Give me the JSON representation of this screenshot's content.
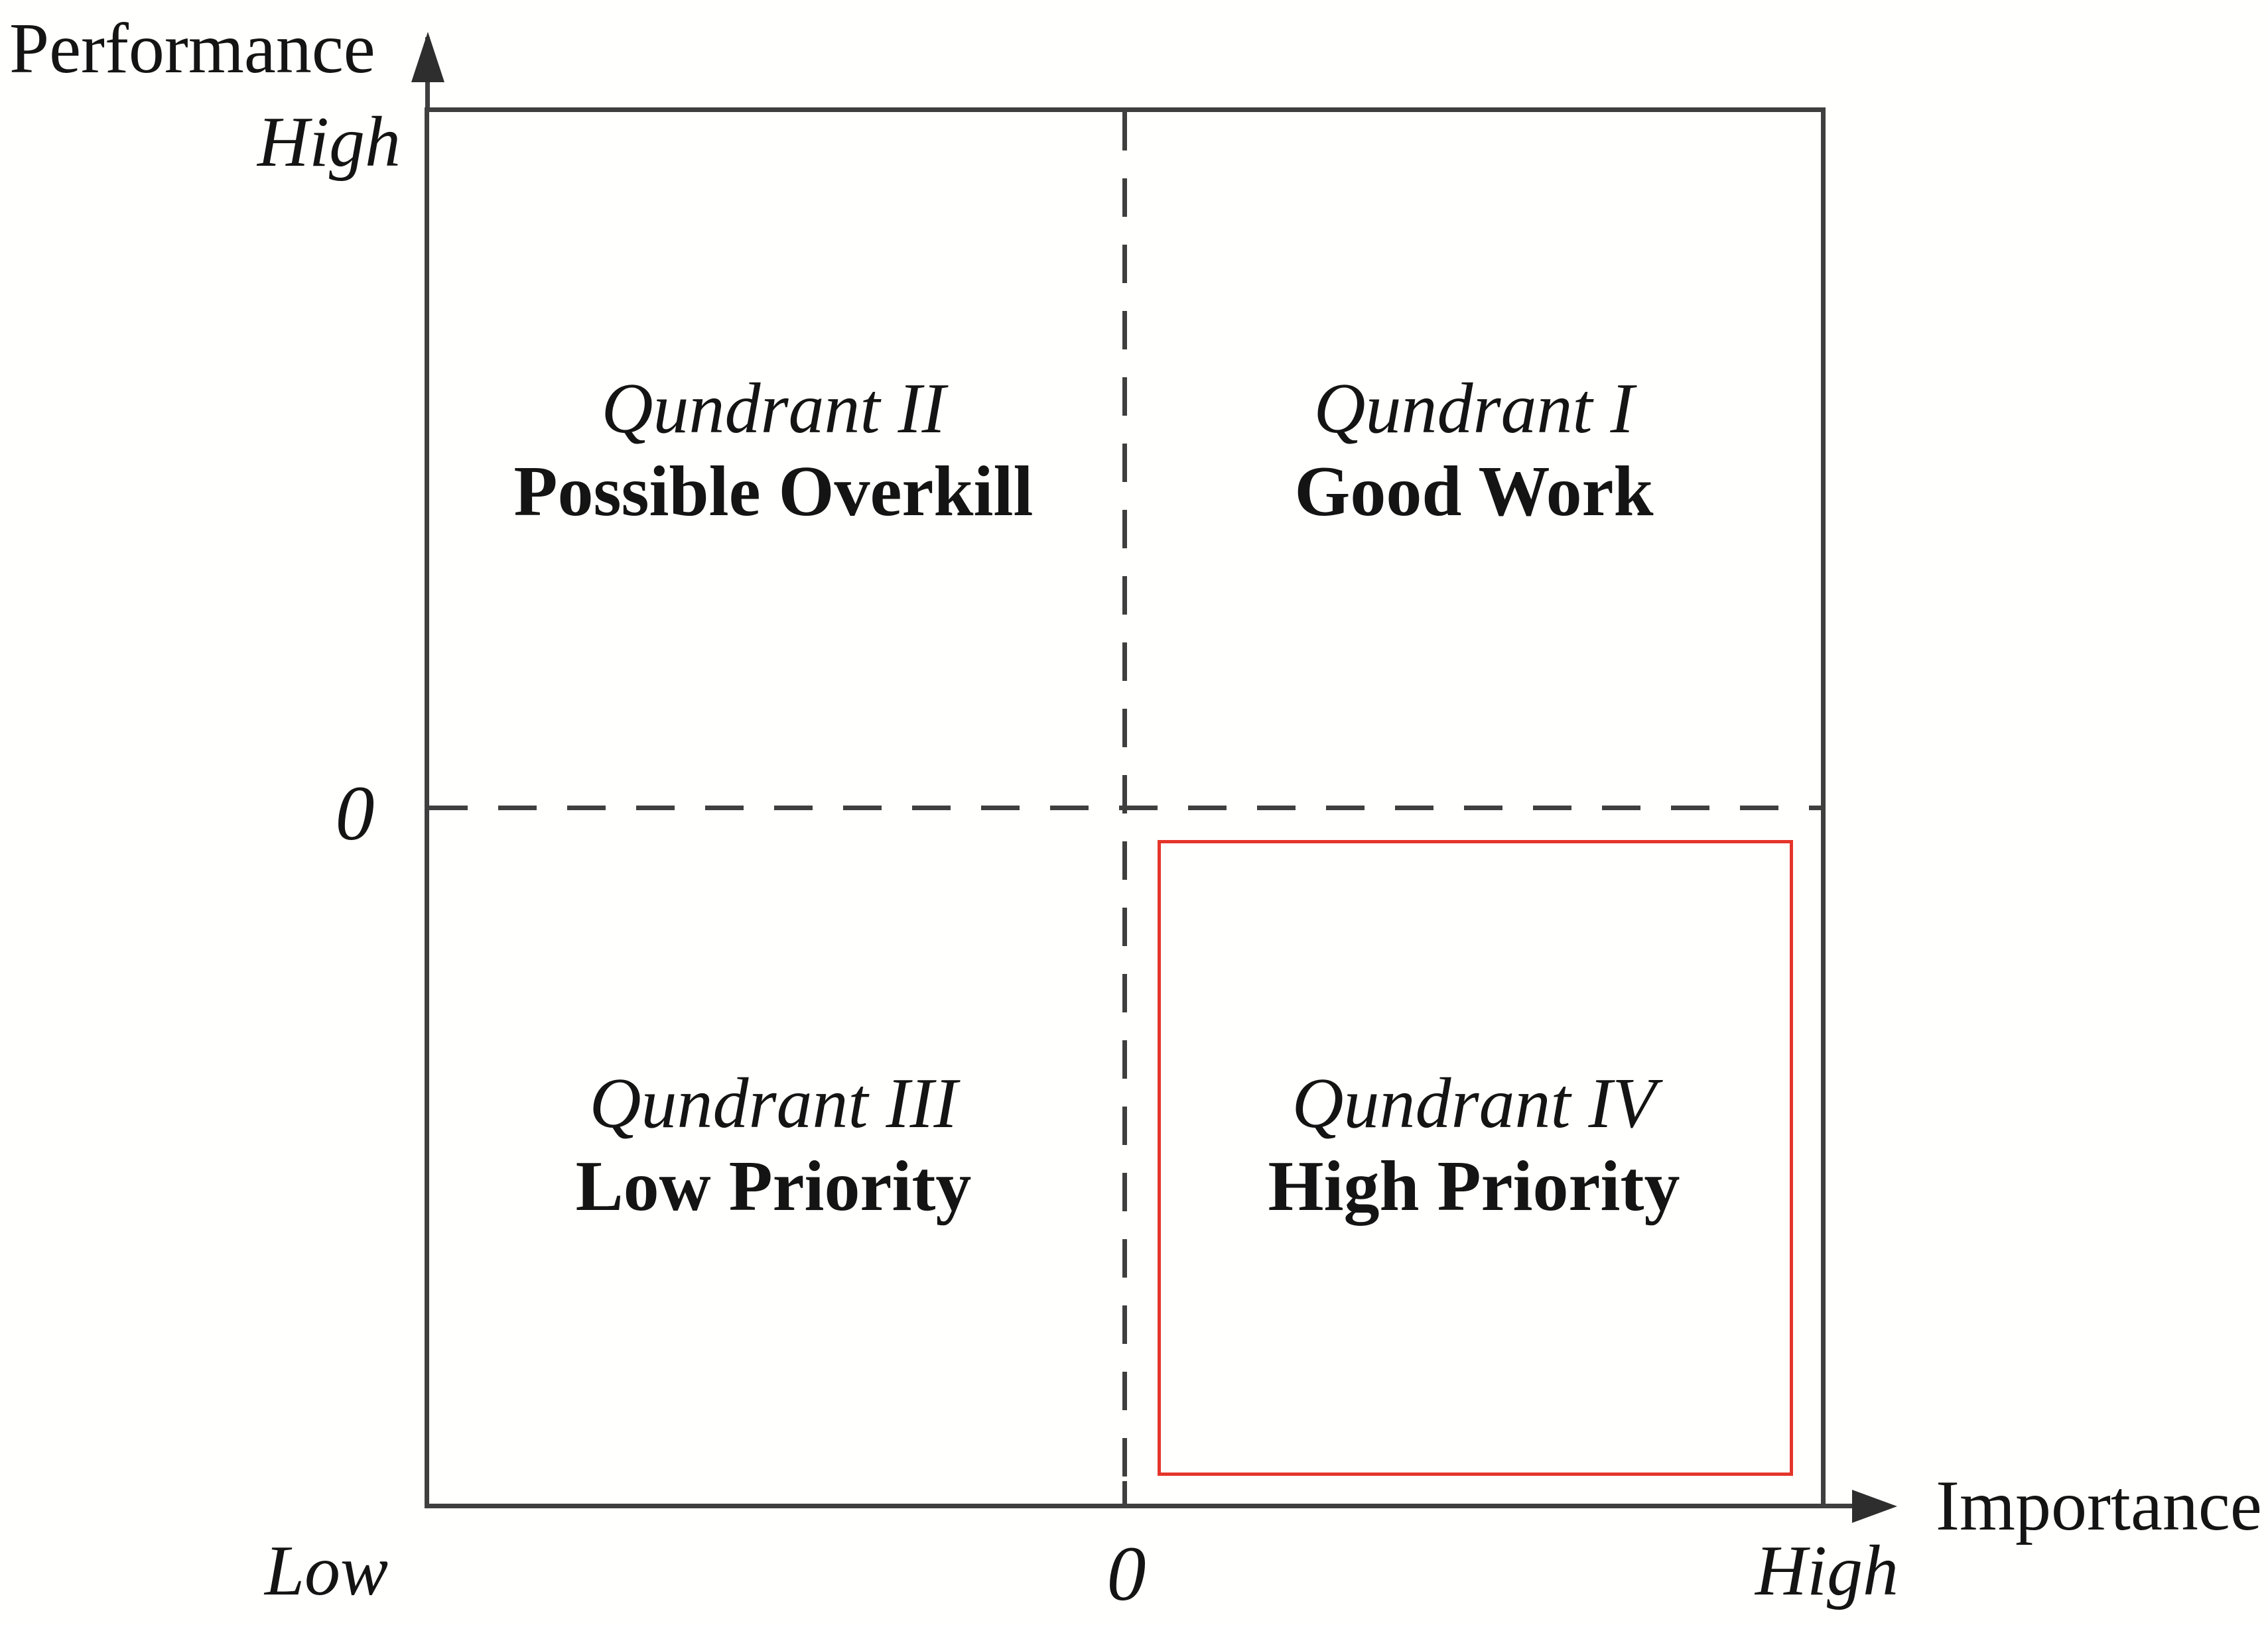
{
  "y_axis": {
    "title": "Performance",
    "high": "High",
    "origin": "0"
  },
  "x_axis": {
    "title": "Importance",
    "low": "Low",
    "origin": "0",
    "high": "High"
  },
  "quadrants": {
    "q2": {
      "name": "Qundrant II",
      "label": "Possible Overkill",
      "position": "top-left",
      "highlighted": false
    },
    "q1": {
      "name": "Qundrant I",
      "label": "Good Work",
      "position": "top-right",
      "highlighted": false
    },
    "q3": {
      "name": "Qundrant III",
      "label": "Low Priority",
      "position": "bottom-left",
      "highlighted": false
    },
    "q4": {
      "name": "Qundrant IV",
      "label": "High Priority",
      "position": "bottom-right",
      "highlighted": true
    }
  },
  "colors": {
    "line": "#3f3f3f",
    "text": "#141414",
    "highlight_red": "#e4352b",
    "background": "#fffffd"
  }
}
